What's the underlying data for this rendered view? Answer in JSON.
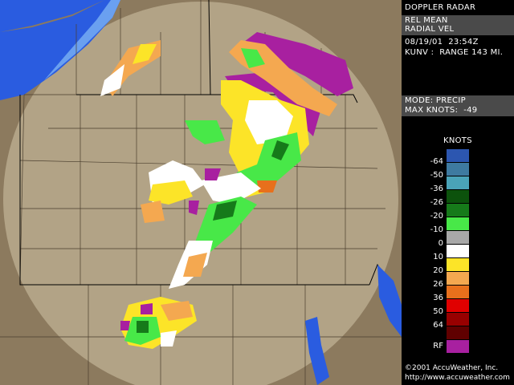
{
  "panel": {
    "title": "DOPPLER RADAR",
    "product_line1": "REL MEAN",
    "product_line2": "RADIAL VEL",
    "datetime": "08/19/01  23:54Z",
    "station_range": "KUNV :  RANGE 143 MI.",
    "mode": "MODE: PRECIP",
    "max_knots": "MAX KNOTS:  -49",
    "legend_title": "KNOTS",
    "copyright": "©2001  AccuWeather, Inc.",
    "url": "http://www.accuweather.com"
  },
  "legend": {
    "colors": [
      "#2c56b0",
      "#3e7aa0",
      "#4aa3b8",
      "#0c520c",
      "#167a1a",
      "#48e848",
      "#a8a8a8",
      "#ffffff",
      "#fce428",
      "#f4a850",
      "#e8701c",
      "#e00000",
      "#980000",
      "#600000",
      "#a820a0"
    ],
    "labels": [
      "-64",
      "-50",
      "-36",
      "-26",
      "-20",
      "-10",
      "0",
      "10",
      "20",
      "26",
      "36",
      "50",
      "64"
    ],
    "rf_label": "RF"
  },
  "map": {
    "land_color": "#8c7a5e",
    "range_circle_color": "#b2a386",
    "water_color": "#2a5ce0"
  }
}
